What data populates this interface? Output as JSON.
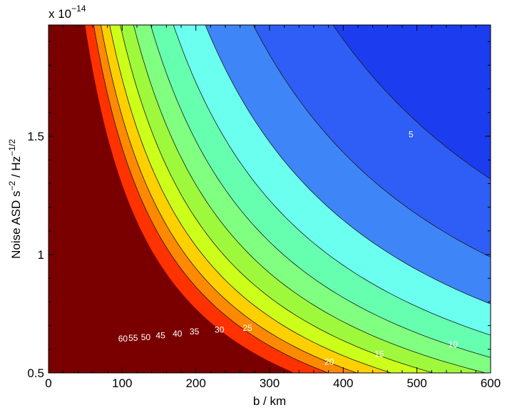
{
  "chart_data": {
    "type": "contour",
    "xlabel": "b / km",
    "ylabel_main": "Noise ASD s",
    "ylabel_sup1": "−2",
    "ylabel_mid": " / Hz",
    "ylabel_sup2": "−1/2",
    "y_multiplier_base": "x 10",
    "y_multiplier_exp": "−14",
    "xlim": [
      0,
      600
    ],
    "ylim": [
      0.5,
      1.97
    ],
    "x_ticks": [
      {
        "value": 0,
        "label": "0"
      },
      {
        "value": 100,
        "label": "100"
      },
      {
        "value": 200,
        "label": "200"
      },
      {
        "value": 300,
        "label": "300"
      },
      {
        "value": 400,
        "label": "400"
      },
      {
        "value": 500,
        "label": "500"
      },
      {
        "value": 600,
        "label": "600"
      }
    ],
    "y_ticks": [
      {
        "value": 0.5,
        "label": "0.5"
      },
      {
        "value": 1.0,
        "label": "1"
      },
      {
        "value": 1.5,
        "label": "1.5"
      }
    ],
    "levels": [
      {
        "value": 5,
        "label": "5",
        "color": "#0a1fd0",
        "label_at": [
          492,
          1.505
        ]
      },
      {
        "value": 10,
        "label": "10",
        "color": "#1c3cf0",
        "label_at": [
          549,
          0.618
        ]
      },
      {
        "value": 15,
        "label": "15",
        "color": "#2e5ef5",
        "label_at": [
          449,
          0.578
        ]
      },
      {
        "value": 20,
        "label": "20",
        "color": "#3e85f8",
        "label_at": [
          381,
          0.544
        ]
      },
      {
        "value": 25,
        "label": "25",
        "color": "#6bfff0",
        "label_at": [
          270,
          0.688
        ]
      },
      {
        "value": 30,
        "label": "30",
        "color": "#66ffb0",
        "label_at": [
          232,
          0.68
        ]
      },
      {
        "value": 35,
        "label": "35",
        "color": "#80ff80",
        "label_at": [
          198,
          0.672
        ]
      },
      {
        "value": 40,
        "label": "40",
        "color": "#9ef93c",
        "label_at": [
          175,
          0.663
        ]
      },
      {
        "value": 45,
        "label": "45",
        "color": "#ccff1a",
        "label_at": [
          152,
          0.655
        ]
      },
      {
        "value": 50,
        "label": "50",
        "color": "#ffd000",
        "label_at": [
          132,
          0.648
        ]
      },
      {
        "value": 55,
        "label": "55",
        "color": "#ff8a00",
        "label_at": [
          115,
          0.645
        ]
      },
      {
        "value": 60,
        "label": "60",
        "color": "#ff3200",
        "label_at": [
          101,
          0.642
        ]
      }
    ],
    "top_color": "#7a0000",
    "below_lowest_color": "#0000d0",
    "grid": false
  }
}
